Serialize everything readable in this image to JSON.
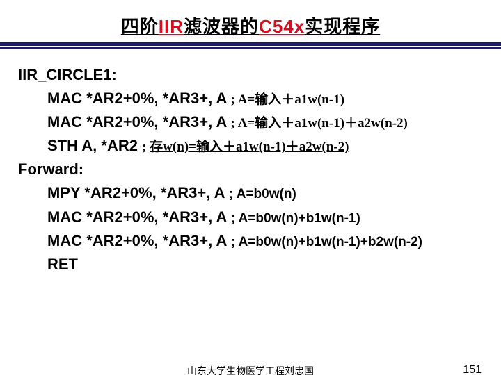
{
  "title": {
    "segments": [
      {
        "text": "四阶",
        "color": "#000000"
      },
      {
        "text": "IIR",
        "color": "#d01020"
      },
      {
        "text": "滤波器的",
        "color": "#000000"
      },
      {
        "text": "C54x",
        "color": "#d01020"
      },
      {
        "text": "实现程序",
        "color": "#000000"
      }
    ],
    "fontsize": 26,
    "underline_color": "#000000"
  },
  "divider": {
    "top_color": "#1d1d6e",
    "mid_color": "#ffffff",
    "bot_color": "#1d1d6e"
  },
  "body": {
    "fontsize_main": 22,
    "fontsize_comment": 19,
    "label1": "IIR_CIRCLE1:",
    "line1_code": "MAC  *AR2+0%, *AR3+, A  ",
    "line1_comment": "; A=输入＋a1w(n-1)",
    "line2_code": "MAC *AR2+0%, *AR3+, A  ",
    "line2_comment": "; A=输入＋a1w(n-1)＋a2w(n-2)",
    "line3_code": "STH  A, *AR2      ",
    "line3_comment_prefix": "; ",
    "line3_comment_underlined": "存w(n)=输入＋a1w(n-1)＋a2w(n-2)",
    "label2": "Forward:",
    "line4_code": "MPY  *AR2+0%, *AR3+, A  ",
    "line4_comment": "; A=b0w(n)",
    "line5_code": "MAC *AR2+0%, *AR3+, A  ",
    "line5_comment": "; A=b0w(n)+b1w(n-1)",
    "line6_code": "MAC *AR2+0%, *AR3+, A ",
    "line6_comment": "; A=b0w(n)+b1w(n-1)+b2w(n-2)",
    "line7_code": "RET"
  },
  "footer": {
    "center_text": "山东大学生物医学工程刘忠国",
    "center_fontsize": 14,
    "right_text": "151",
    "right_fontsize": 16
  },
  "colors": {
    "text": "#000000",
    "background": "#ffffff"
  }
}
